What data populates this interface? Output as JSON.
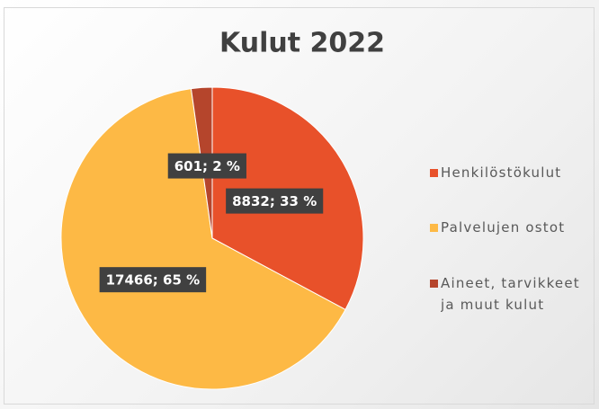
{
  "chart_data": {
    "type": "pie",
    "title": "Kulut 2022",
    "categories": [
      "Henkilöstökulut",
      "Palvelujen ostot",
      "Aineet, tarvikkeet ja muut kulut"
    ],
    "values": [
      8832,
      17466,
      601
    ],
    "value_labels": [
      "8832; 33 %",
      "17466; 65 %",
      "601; 2 %"
    ],
    "colors": [
      "#e8512a",
      "#fdb945",
      "#b5452c"
    ],
    "legend": "right"
  }
}
